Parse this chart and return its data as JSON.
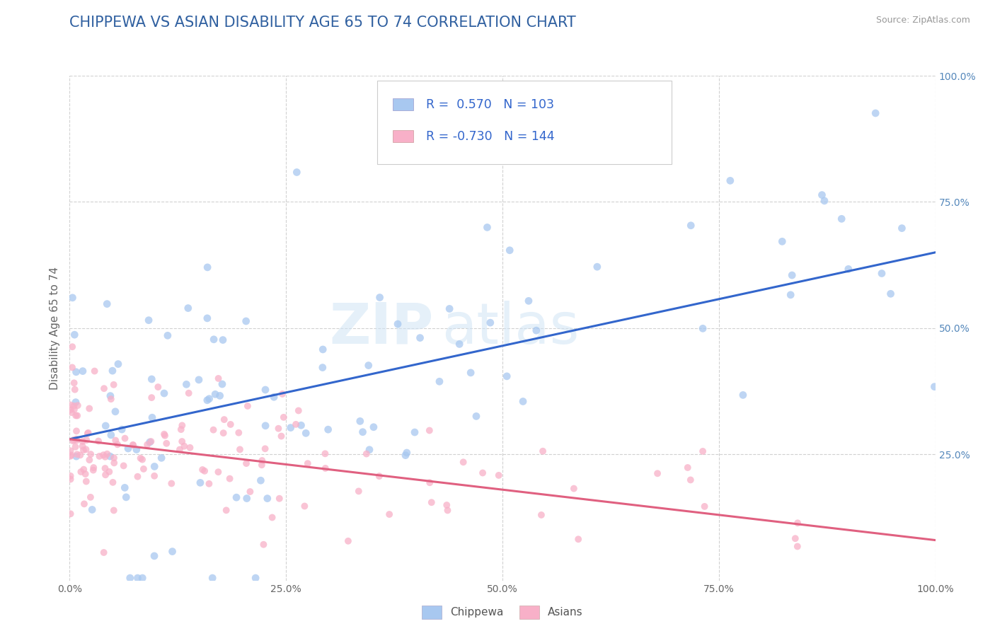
{
  "title": "CHIPPEWA VS ASIAN DISABILITY AGE 65 TO 74 CORRELATION CHART",
  "source_text": "Source: ZipAtlas.com",
  "xlabel": "",
  "ylabel": "Disability Age 65 to 74",
  "legend_label_1": "Chippewa",
  "legend_label_2": "Asians",
  "R1": 0.57,
  "N1": 103,
  "R2": -0.73,
  "N2": 144,
  "color1": "#a8c8f0",
  "color1_line": "#3366cc",
  "color2": "#f8b0c8",
  "color2_line": "#e06080",
  "xlim": [
    0.0,
    1.0
  ],
  "ylim": [
    0.0,
    1.0
  ],
  "title_color": "#3060a0",
  "title_fontsize": 15,
  "axis_label_fontsize": 11,
  "tick_label_fontsize": 10,
  "watermark_zip": "ZIP",
  "watermark_atlas": "atlas",
  "background_color": "#ffffff",
  "grid_color": "#cccccc",
  "legend_text_color": "#3366cc",
  "tick_color": "#5588bb"
}
